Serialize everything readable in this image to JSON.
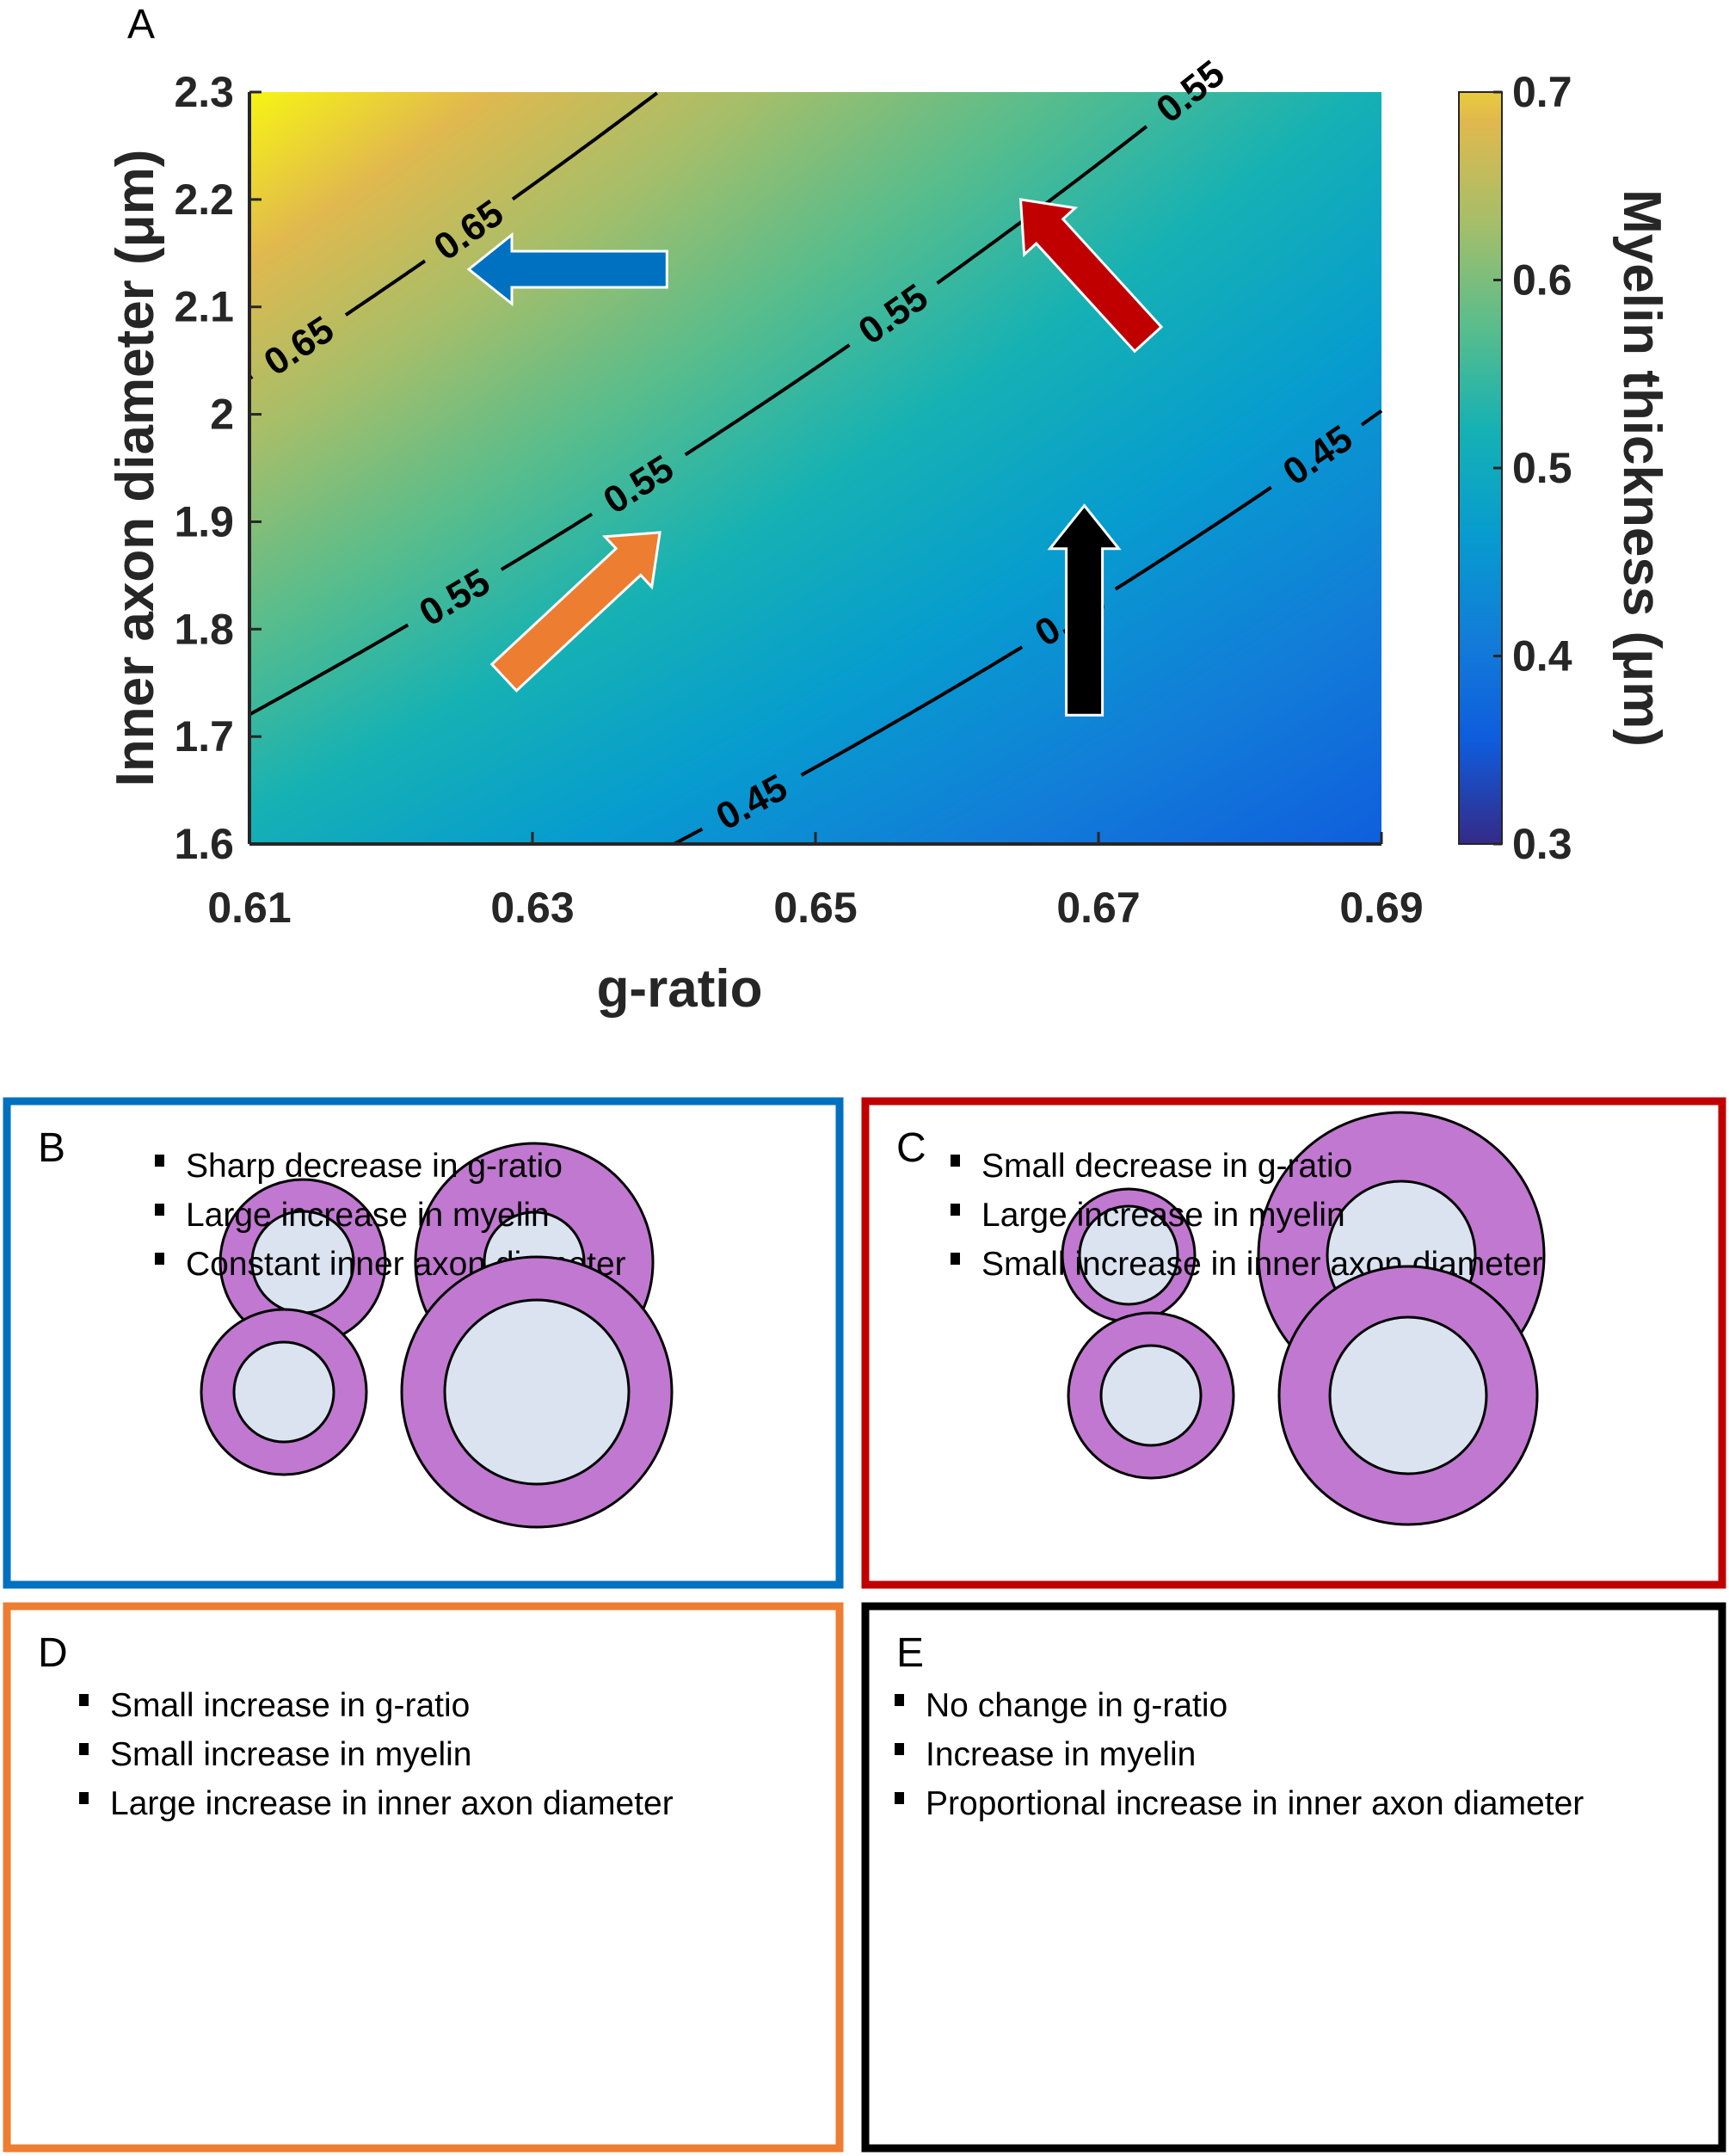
{
  "chart_data": {
    "type": "heatmap",
    "panel_label": "A",
    "xlabel": "g-ratio",
    "ylabel": "Inner axon diameter (μm)",
    "colorbar_label": "Myelin thickness (μm)",
    "colormap": "parula",
    "xlim": [
      0.61,
      0.69
    ],
    "ylim": [
      1.6,
      2.3
    ],
    "clim": [
      0.3,
      0.7
    ],
    "x_ticks": [
      "0.61",
      "0.63",
      "0.65",
      "0.67",
      "0.69"
    ],
    "y_ticks": [
      "1.6",
      "1.7",
      "1.8",
      "1.9",
      "2",
      "2.1",
      "2.2",
      "2.3"
    ],
    "colorbar_ticks": [
      "0.3",
      "0.4",
      "0.5",
      "0.6",
      "0.7"
    ],
    "x": [
      0.61,
      0.63,
      0.65,
      0.67,
      0.69
    ],
    "y": [
      1.6,
      1.7,
      1.8,
      1.9,
      2.0,
      2.1,
      2.2,
      2.3
    ],
    "z": [
      [
        0.512,
        0.47,
        0.431,
        0.394,
        0.359
      ],
      [
        0.543,
        0.499,
        0.458,
        0.419,
        0.382
      ],
      [
        0.575,
        0.529,
        0.485,
        0.443,
        0.404
      ],
      [
        0.607,
        0.558,
        0.512,
        0.468,
        0.427
      ],
      [
        0.639,
        0.587,
        0.538,
        0.493,
        0.449
      ],
      [
        0.671,
        0.617,
        0.565,
        0.517,
        0.472
      ],
      [
        0.703,
        0.646,
        0.592,
        0.542,
        0.494
      ],
      [
        0.735,
        0.675,
        0.619,
        0.566,
        0.517
      ]
    ],
    "contours": [
      {
        "level": 0.65,
        "label": "0.65",
        "label_x": [
          0.6135,
          0.6255
        ]
      },
      {
        "level": 0.55,
        "label": "0.55",
        "label_x": [
          0.6245,
          0.6375,
          0.6555,
          0.6765
        ]
      },
      {
        "level": 0.45,
        "label": "0.45",
        "label_x": [
          0.6455,
          0.668,
          0.6855
        ]
      }
    ],
    "arrows": [
      {
        "color": "#0070c0",
        "from": [
          0.6395,
          2.135
        ],
        "to": [
          0.6255,
          2.135
        ]
      },
      {
        "color": "#c00000",
        "from": [
          0.6735,
          2.07
        ],
        "to": [
          0.6645,
          2.2
        ]
      },
      {
        "color": "#ed7d31",
        "from": [
          0.628,
          1.755
        ],
        "to": [
          0.639,
          1.89
        ]
      },
      {
        "color": "#000000",
        "from": [
          0.669,
          1.72
        ],
        "to": [
          0.669,
          1.915
        ]
      }
    ]
  },
  "panels": [
    {
      "label": "B",
      "border_color": "#0070c0",
      "bullets": [
        "Sharp decrease in g-ratio",
        "Large increase in myelin",
        "Constant inner axon diameter"
      ]
    },
    {
      "label": "C",
      "border_color": "#c00000",
      "bullets": [
        "Small decrease in g-ratio",
        "Large increase in myelin",
        "Small increase in inner axon diameter"
      ]
    },
    {
      "label": "D",
      "border_color": "#ed7d31",
      "bullets": [
        "Small increase in g-ratio",
        "Small increase in myelin",
        "Large increase in inner axon diameter"
      ]
    },
    {
      "label": "E",
      "border_color": "#000000",
      "bullets": [
        "No change in g-ratio",
        "Increase in myelin",
        "Proportional increase in inner axon diameter"
      ]
    }
  ],
  "colors": {
    "myelin": "#c178d0",
    "axon": "#dbe3f1"
  }
}
